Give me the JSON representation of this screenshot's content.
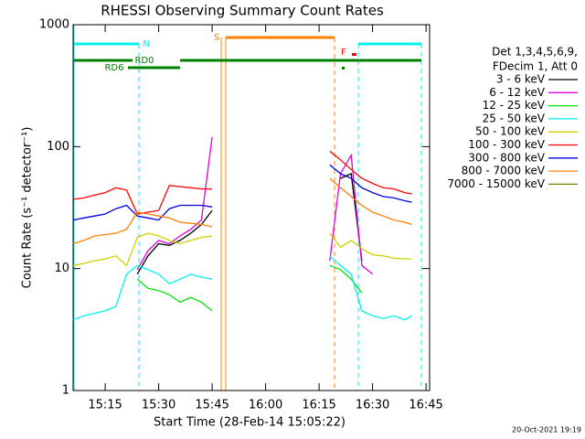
{
  "chart_data": {
    "type": "line",
    "title": "RHESSI Observing Summary Count Rates",
    "x_label": "Start Time (28-Feb-14 15:05:22)",
    "y_label": "Count Rate (s⁻¹ detector⁻¹)",
    "footer": "20-Oct-2021 19:19",
    "legend_header": [
      "Det 1,3,4,5,6,9,",
      "FDecim 1, Att 0"
    ],
    "annotations": [
      "N",
      "S",
      "F",
      "RD0",
      "RD6"
    ],
    "log_y": true,
    "xlim": [
      "15:06",
      "16:46"
    ],
    "xticks": [
      "15:15",
      "15:30",
      "15:45",
      "16:00",
      "16:15",
      "16:30",
      "16:45"
    ],
    "ylim": [
      1,
      1000
    ],
    "yticks": [
      1,
      10,
      100,
      1000
    ],
    "x": [
      "15:06",
      "15:09",
      "15:12",
      "15:15",
      "15:18",
      "15:21",
      "15:24",
      "15:27",
      "15:30",
      "15:33",
      "15:36",
      "15:39",
      "15:42",
      "15:45",
      "15:48",
      "16:18",
      "16:21",
      "16:24",
      "16:27",
      "16:30",
      "16:33",
      "16:36",
      "16:39",
      "16:41"
    ],
    "series": [
      {
        "name": "3 - 6 keV",
        "color": "#000000",
        "values": [
          null,
          null,
          null,
          null,
          null,
          null,
          9,
          12.7,
          16,
          15.5,
          17,
          19.5,
          23,
          30,
          null,
          null,
          55,
          60,
          11.6,
          null,
          null,
          null,
          null,
          null
        ]
      },
      {
        "name": "6 - 12 keV",
        "color": "#e000e0",
        "values": [
          null,
          null,
          null,
          null,
          null,
          null,
          9.8,
          14,
          17,
          16,
          18.5,
          21,
          25,
          120,
          null,
          11.6,
          60,
          85,
          10.6,
          9,
          null,
          null,
          null,
          null
        ]
      },
      {
        "name": "12 - 25 keV",
        "color": "#00e000",
        "values": [
          null,
          null,
          null,
          null,
          null,
          null,
          8.2,
          6.9,
          6.6,
          6.1,
          5.3,
          5.8,
          5.3,
          4.5,
          null,
          10.6,
          9.8,
          8.2,
          6.3,
          null,
          null,
          null,
          null,
          null
        ]
      },
      {
        "name": "25 - 50 keV",
        "color": "#00f0f0",
        "values": [
          3.8,
          4.1,
          4.3,
          4.5,
          4.9,
          9,
          10.6,
          9.8,
          9,
          7.5,
          8.2,
          9,
          8.5,
          8.2,
          null,
          12.7,
          10.6,
          9,
          4.5,
          4.1,
          3.9,
          4.1,
          3.8,
          4.1
        ]
      },
      {
        "name": "50 - 100 keV",
        "color": "#d0d000",
        "values": [
          10.6,
          11,
          11.6,
          12,
          12.7,
          10.6,
          18,
          19.5,
          18.5,
          17,
          16,
          17,
          18,
          18.5,
          null,
          19.5,
          15,
          17,
          14.5,
          13,
          12.7,
          12.2,
          12,
          12
        ]
      },
      {
        "name": "100 - 300 keV",
        "color": "#ff0000",
        "values": [
          37,
          38,
          40,
          42,
          46,
          44,
          28,
          29,
          30,
          48,
          47,
          46,
          45,
          45,
          null,
          92,
          78,
          65,
          55,
          50,
          46,
          45,
          42,
          41
        ]
      },
      {
        "name": "300 - 800 keV",
        "color": "#0000e0",
        "values": [
          25,
          26,
          27,
          28,
          31,
          33,
          27,
          26,
          25,
          31,
          33,
          33,
          33,
          32,
          null,
          71,
          60,
          55,
          46,
          42,
          39,
          38,
          36,
          35
        ]
      },
      {
        "name": "800 - 7000 keV",
        "color": "#ff8000",
        "values": [
          16,
          17,
          18.5,
          19,
          19.5,
          21,
          29,
          28,
          27,
          26,
          24,
          23.5,
          23,
          22,
          null,
          55,
          46,
          39,
          33,
          29,
          27,
          25,
          24,
          23
        ]
      },
      {
        "name": "7000 - 15000 keV",
        "color": "#808000",
        "values": [
          null,
          null,
          null,
          null,
          null,
          null,
          null,
          null,
          null,
          null,
          null,
          null,
          null,
          null,
          null,
          null,
          null,
          null,
          null,
          null,
          null,
          null,
          null,
          null
        ]
      }
    ]
  }
}
